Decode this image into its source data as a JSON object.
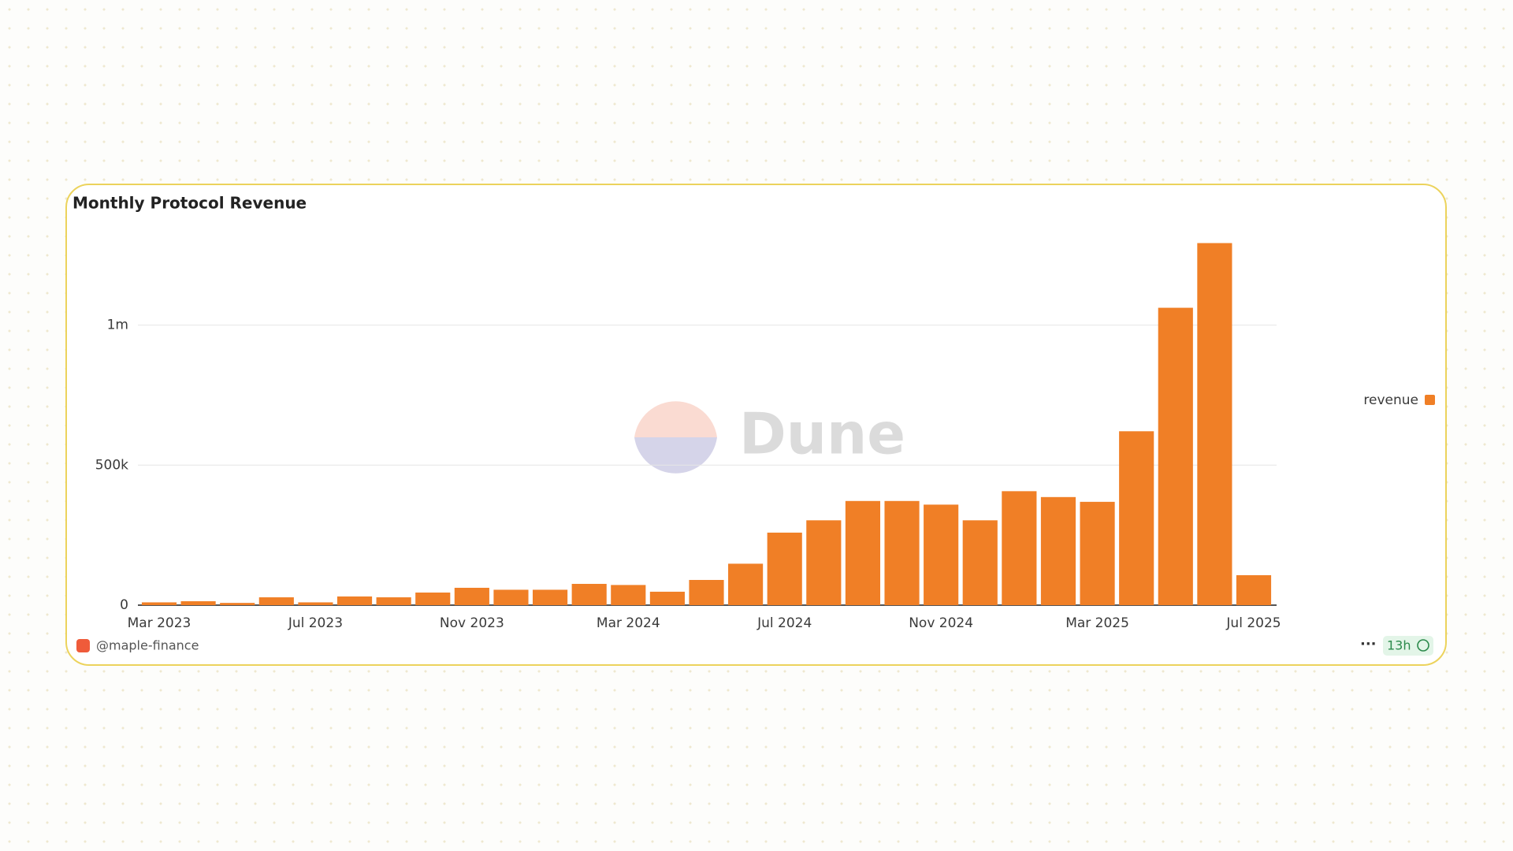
{
  "chart_data": {
    "type": "bar",
    "title": "Monthly Protocol Revenue",
    "categories": [
      "Mar 2023",
      null,
      null,
      null,
      "Jul 2023",
      null,
      null,
      null,
      "Nov 2023",
      null,
      null,
      null,
      "Mar 2024",
      null,
      null,
      null,
      "Jul 2024",
      null,
      null,
      null,
      "Nov 2024",
      null,
      null,
      null,
      "Mar 2025",
      null,
      null,
      null,
      "Jul 2025"
    ],
    "series": [
      {
        "name": "revenue",
        "color": "#f07f26",
        "values": [
          10000,
          14000,
          8000,
          28000,
          10000,
          31000,
          28000,
          45000,
          62000,
          55000,
          55000,
          76000,
          72000,
          48000,
          90000,
          148000,
          259000,
          303000,
          372000,
          372000,
          359000,
          303000,
          407000,
          386000,
          369000,
          621000,
          1062000,
          1293000,
          107000
        ]
      }
    ],
    "ylim": [
      0,
      1300000
    ],
    "yticks": [
      0,
      {
        "value": 500000,
        "label": "500k"
      },
      {
        "value": 1000000,
        "label": "1m"
      }
    ],
    "grid": true,
    "legend": "right",
    "watermark": "Dune",
    "author": "@maple-finance",
    "freshness": "13h"
  }
}
